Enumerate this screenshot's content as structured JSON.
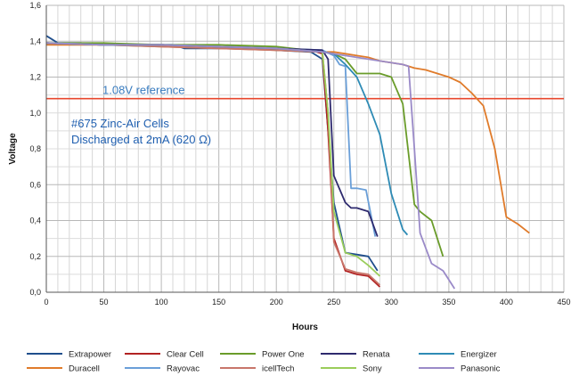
{
  "chart_data": {
    "type": "line",
    "title": "",
    "xlabel": "Hours",
    "ylabel": "Voltage",
    "xlim": [
      0,
      450
    ],
    "ylim": [
      0,
      1.6
    ],
    "xticks": [
      0,
      50,
      100,
      150,
      200,
      250,
      300,
      350,
      400,
      450
    ],
    "yticks": [
      0,
      0.2,
      0.4,
      0.6,
      0.8,
      1.0,
      1.2,
      1.4,
      1.6
    ],
    "xtick_labels": [
      "0",
      "50",
      "100",
      "150",
      "200",
      "250",
      "300",
      "350",
      "400",
      "450"
    ],
    "ytick_labels": [
      "0,0",
      "0,2",
      "0,4",
      "0,6",
      "0,8",
      "1,0",
      "1,2",
      "1,4",
      "1,6"
    ],
    "grid": true,
    "legend_position": "bottom",
    "reference_line": {
      "value": 1.08,
      "label": "1.08V reference",
      "color": "#e8472e",
      "label_color": "#3a7dc0"
    },
    "annotation": {
      "lines": [
        "#675 Zinc-Air Cells",
        "Discharged at 2mA (620 Ω)"
      ],
      "color": "#1f5fb0"
    },
    "series": [
      {
        "name": "Extrapower",
        "color": "#1f4e8c",
        "x": [
          0,
          5,
          10,
          30,
          50,
          100,
          110,
          120,
          150,
          170,
          200,
          230,
          240,
          250,
          260,
          270,
          280,
          288
        ],
        "y": [
          1.43,
          1.41,
          1.39,
          1.39,
          1.38,
          1.38,
          1.38,
          1.36,
          1.36,
          1.37,
          1.35,
          1.34,
          1.3,
          0.5,
          0.22,
          0.21,
          0.2,
          0.12
        ]
      },
      {
        "name": "Duracell",
        "color": "#e07b2a",
        "x": [
          0,
          50,
          100,
          150,
          200,
          240,
          250,
          260,
          270,
          280,
          290,
          300,
          310,
          320,
          330,
          340,
          350,
          360,
          370,
          380,
          390,
          400,
          410,
          420
        ],
        "y": [
          1.38,
          1.38,
          1.37,
          1.36,
          1.35,
          1.34,
          1.34,
          1.33,
          1.32,
          1.31,
          1.29,
          1.28,
          1.27,
          1.25,
          1.24,
          1.22,
          1.2,
          1.17,
          1.11,
          1.04,
          0.8,
          0.42,
          0.38,
          0.33
        ]
      },
      {
        "name": "Clear Cell",
        "color": "#b22222",
        "x": [
          0,
          50,
          100,
          150,
          200,
          230,
          240,
          245,
          250,
          260,
          270,
          280,
          290
        ],
        "y": [
          1.39,
          1.38,
          1.38,
          1.37,
          1.36,
          1.35,
          1.33,
          0.9,
          0.3,
          0.12,
          0.1,
          0.09,
          0.03
        ]
      },
      {
        "name": "Rayovac",
        "color": "#6a9fd8",
        "x": [
          0,
          50,
          100,
          150,
          200,
          240,
          250,
          255,
          260,
          265,
          270,
          278,
          286
        ],
        "y": [
          1.39,
          1.38,
          1.38,
          1.37,
          1.36,
          1.35,
          1.32,
          1.27,
          1.26,
          0.58,
          0.58,
          0.57,
          0.31
        ]
      },
      {
        "name": "Power One",
        "color": "#6a9c2a",
        "x": [
          0,
          50,
          100,
          150,
          200,
          240,
          250,
          260,
          270,
          280,
          290,
          300,
          310,
          320,
          325,
          335,
          345
        ],
        "y": [
          1.39,
          1.39,
          1.38,
          1.38,
          1.37,
          1.34,
          1.33,
          1.3,
          1.22,
          1.22,
          1.22,
          1.2,
          1.05,
          0.49,
          0.45,
          0.4,
          0.2
        ]
      },
      {
        "name": "icellTech",
        "color": "#c8766a",
        "x": [
          0,
          50,
          100,
          150,
          200,
          240,
          245,
          250,
          260,
          270,
          280,
          290
        ],
        "y": [
          1.39,
          1.38,
          1.37,
          1.36,
          1.35,
          1.34,
          1.0,
          0.28,
          0.13,
          0.11,
          0.1,
          0.04
        ]
      },
      {
        "name": "Renata",
        "color": "#2e2a6e",
        "x": [
          0,
          50,
          100,
          150,
          200,
          240,
          245,
          250,
          260,
          265,
          270,
          280,
          288
        ],
        "y": [
          1.39,
          1.38,
          1.38,
          1.37,
          1.36,
          1.35,
          1.3,
          0.65,
          0.5,
          0.47,
          0.47,
          0.45,
          0.31
        ]
      },
      {
        "name": "Sony",
        "color": "#9acd5a",
        "x": [
          0,
          50,
          100,
          150,
          200,
          240,
          245,
          250,
          260,
          270,
          280,
          290
        ],
        "y": [
          1.39,
          1.38,
          1.38,
          1.37,
          1.36,
          1.34,
          1.0,
          0.45,
          0.22,
          0.2,
          0.15,
          0.09
        ]
      },
      {
        "name": "Energizer",
        "color": "#2e8bb5",
        "x": [
          0,
          50,
          100,
          150,
          200,
          240,
          250,
          260,
          270,
          280,
          290,
          300,
          310,
          314
        ],
        "y": [
          1.39,
          1.38,
          1.38,
          1.37,
          1.36,
          1.34,
          1.33,
          1.27,
          1.2,
          1.05,
          0.88,
          0.55,
          0.35,
          0.32
        ]
      },
      {
        "name": "Panasonic",
        "color": "#9a8ac8",
        "x": [
          0,
          50,
          100,
          150,
          200,
          240,
          260,
          280,
          300,
          310,
          315,
          320,
          325,
          335,
          345,
          355
        ],
        "y": [
          1.39,
          1.38,
          1.38,
          1.37,
          1.36,
          1.34,
          1.32,
          1.3,
          1.28,
          1.27,
          1.26,
          0.8,
          0.33,
          0.16,
          0.12,
          0.02
        ]
      }
    ],
    "legend_order": [
      "Extrapower",
      "Clear Cell",
      "Power One",
      "Renata",
      "Energizer",
      "Duracell",
      "Rayovac",
      "icellTech",
      "Sony",
      "Panasonic"
    ]
  }
}
